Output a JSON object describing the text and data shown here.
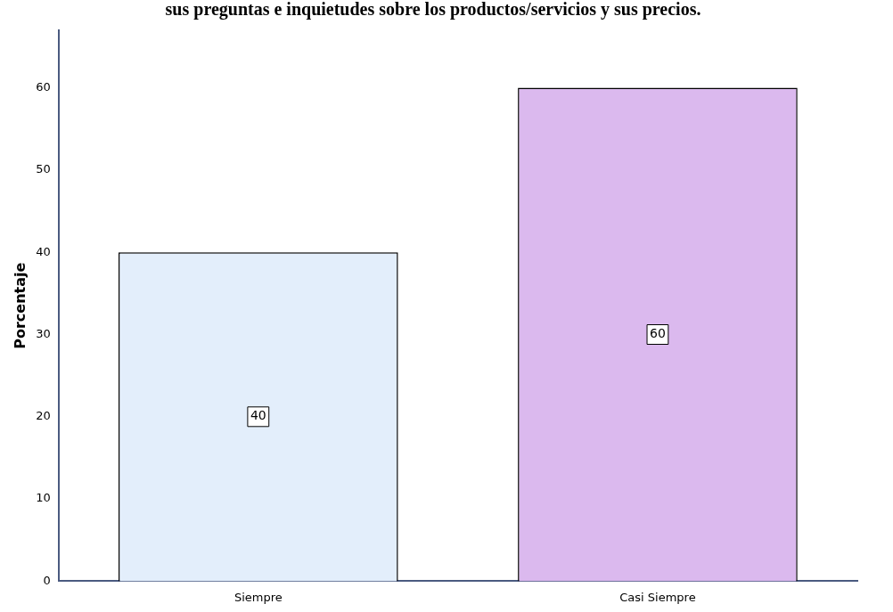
{
  "chart_data": {
    "type": "bar",
    "title": "sus preguntas e inquietudes sobre los productos/servicios y sus precios.",
    "ylabel": "Porcentaje",
    "categories": [
      "Siempre",
      "Casi Siempre"
    ],
    "values": [
      40,
      60
    ],
    "colors": [
      "#e3eefb",
      "#dbb9ee"
    ],
    "ylim": [
      0,
      67
    ],
    "yticks": [
      0,
      10,
      20,
      30,
      40,
      50,
      60
    ],
    "grid": false,
    "legend": false,
    "data_labels": true
  }
}
